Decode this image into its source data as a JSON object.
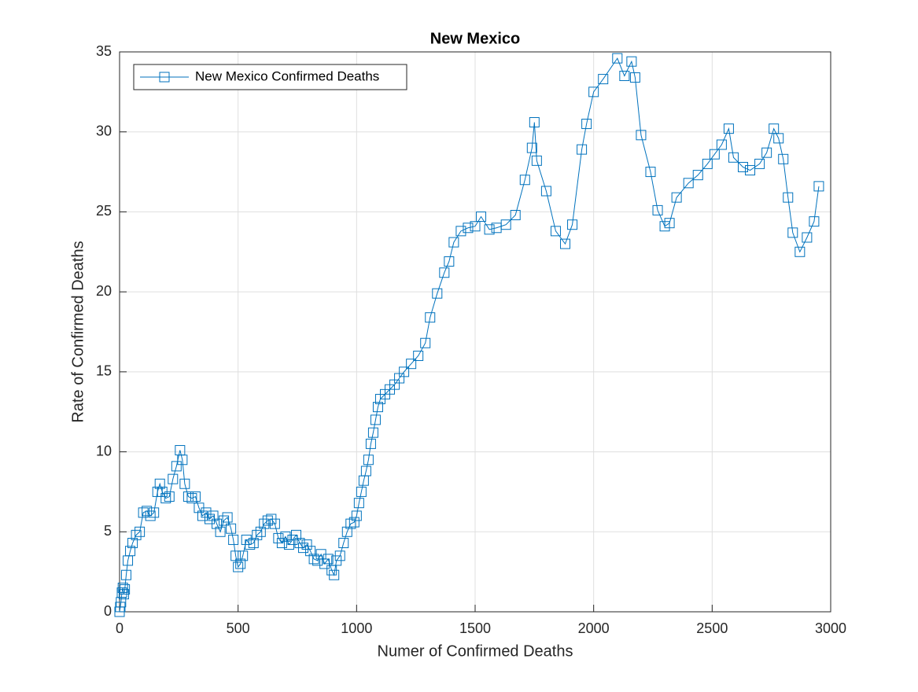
{
  "chart_data": {
    "type": "line",
    "title": "New Mexico",
    "xlabel": "Numer of Confirmed Deaths",
    "ylabel": "Rate of Confirmed Deaths",
    "x": [
      0,
      3,
      6,
      10,
      14,
      18,
      22,
      28,
      35,
      45,
      55,
      70,
      85,
      100,
      115,
      130,
      145,
      160,
      170,
      180,
      195,
      210,
      225,
      240,
      255,
      265,
      275,
      290,
      305,
      320,
      335,
      350,
      365,
      380,
      395,
      410,
      425,
      440,
      455,
      470,
      480,
      490,
      500,
      510,
      520,
      535,
      550,
      565,
      580,
      595,
      610,
      625,
      640,
      655,
      670,
      685,
      700,
      715,
      730,
      745,
      760,
      775,
      790,
      805,
      820,
      835,
      850,
      865,
      880,
      895,
      905,
      915,
      930,
      945,
      960,
      975,
      990,
      1000,
      1010,
      1020,
      1030,
      1040,
      1050,
      1060,
      1070,
      1080,
      1090,
      1100,
      1120,
      1140,
      1160,
      1180,
      1200,
      1230,
      1260,
      1290,
      1310,
      1340,
      1370,
      1390,
      1410,
      1440,
      1470,
      1500,
      1525,
      1560,
      1590,
      1630,
      1670,
      1710,
      1740,
      1750,
      1760,
      1800,
      1840,
      1880,
      1910,
      1950,
      1970,
      2000,
      2040,
      2100,
      2130,
      2160,
      2175,
      2200,
      2240,
      2270,
      2300,
      2320,
      2350,
      2400,
      2440,
      2480,
      2510,
      2540,
      2570,
      2590,
      2630,
      2660,
      2700,
      2730,
      2760,
      2780,
      2800,
      2820,
      2840,
      2870,
      2900,
      2930,
      2950
    ],
    "series": [
      {
        "name": "New Mexico Confirmed Deaths",
        "color": "#0072bd",
        "values": [
          0,
          0.3,
          0.6,
          1.2,
          1.5,
          1.1,
          1.4,
          2.3,
          3.2,
          3.8,
          4.3,
          4.8,
          5,
          6.2,
          6.3,
          6,
          6.2,
          7.5,
          8,
          7.5,
          7.1,
          7.2,
          8.3,
          9.1,
          10.1,
          9.5,
          8,
          7.2,
          7.1,
          7.2,
          6.5,
          6,
          6.2,
          5.8,
          6,
          5.5,
          5,
          5.7,
          5.9,
          5.2,
          4.5,
          3.5,
          2.8,
          3,
          3.5,
          4.5,
          4.2,
          4.3,
          4.8,
          5,
          5.5,
          5.7,
          5.8,
          5.5,
          4.6,
          4.3,
          4.7,
          4.2,
          4.5,
          4.8,
          4.3,
          4,
          4.2,
          3.8,
          3.3,
          3.2,
          3.6,
          3,
          3.3,
          2.6,
          2.3,
          3.2,
          3.5,
          4.3,
          5,
          5.5,
          5.6,
          6,
          6.8,
          7.5,
          8.2,
          8.8,
          9.5,
          10.5,
          11.2,
          12,
          12.8,
          13.3,
          13.6,
          13.9,
          14.2,
          14.6,
          15,
          15.5,
          16,
          16.8,
          18.4,
          19.9,
          21.2,
          21.9,
          23.1,
          23.8,
          24,
          24.1,
          24.7,
          23.9,
          24,
          24.2,
          24.8,
          27,
          29,
          30.6,
          28.2,
          26.3,
          23.8,
          23,
          24.2,
          28.9,
          30.5,
          32.5,
          33.3,
          34.6,
          33.5,
          34.4,
          33.4,
          29.8,
          27.5,
          25.1,
          24.1,
          24.3,
          25.9,
          26.8,
          27.3,
          28,
          28.6,
          29.2,
          30.2,
          28.4,
          27.8,
          27.6,
          28,
          28.7,
          30.2,
          29.6,
          28.3,
          25.9,
          23.7,
          22.5,
          23.4,
          24.4,
          26.6
        ]
      }
    ],
    "xlim": [
      0,
      3000
    ],
    "ylim": [
      0,
      35
    ],
    "xticks": [
      0,
      500,
      1000,
      1500,
      2000,
      2500,
      3000
    ],
    "yticks": [
      0,
      5,
      10,
      15,
      20,
      25,
      30,
      35
    ],
    "grid": true,
    "legend": "upper left",
    "marker": "square"
  }
}
